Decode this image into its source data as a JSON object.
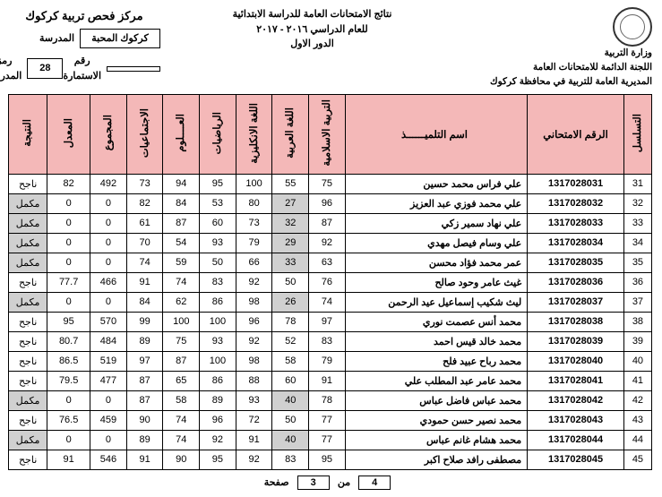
{
  "header": {
    "ministry": "وزارة التربية",
    "committee": "اللجنة الدائمة للامتحانات العامة",
    "directorate": "المديرية العامة للتربية في محافظة كركوك",
    "title": "نتائج الامتحانات العامة للدراسة الابتدائية",
    "year": "للعام الدراسي ٢٠١٦ - ٢٠١٧",
    "round": "الدور الاول",
    "center": "مركز فحص تربية كركوك",
    "school_label": "المدرسة",
    "school": "كركوك المحبة",
    "code_label": "رمز المدرسة",
    "code": "28",
    "form_label": "رقم الاستمارة"
  },
  "columns": {
    "seq": "التسلسل",
    "exnum": "الرقم الامتحاني",
    "name": "اسم التلميــــــذ",
    "s1": "التربية الاسلامية",
    "s2": "اللغة العربية",
    "s3": "اللغة الانكليزية",
    "s4": "الرياضيات",
    "s5": "العــــلوم",
    "s6": "الاجتماعيات",
    "total": "المجموع",
    "avg": "المعدل",
    "res": "النتيجة"
  },
  "rows": [
    {
      "seq": 31,
      "exnum": "1317028031",
      "name": "علي فراس محمد حسين",
      "s": [
        75,
        55,
        100,
        95,
        94,
        73
      ],
      "total": 492,
      "avg": "82",
      "res": "ناجح",
      "grey": []
    },
    {
      "seq": 32,
      "exnum": "1317028032",
      "name": "علي محمد فوزي عبد العزيز",
      "s": [
        96,
        27,
        80,
        53,
        84,
        82
      ],
      "total": 0,
      "avg": "0",
      "res": "مكمل",
      "grey": [
        "s2",
        "res"
      ]
    },
    {
      "seq": 33,
      "exnum": "1317028033",
      "name": "علي نهاد سمير زكي",
      "s": [
        87,
        32,
        73,
        60,
        87,
        61
      ],
      "total": 0,
      "avg": "0",
      "res": "مكمل",
      "grey": [
        "s2",
        "res"
      ]
    },
    {
      "seq": 34,
      "exnum": "1317028034",
      "name": "علي وسام فيصل مهدي",
      "s": [
        92,
        29,
        79,
        93,
        54,
        70
      ],
      "total": 0,
      "avg": "0",
      "res": "مكمل",
      "grey": [
        "s2",
        "res"
      ]
    },
    {
      "seq": 35,
      "exnum": "1317028035",
      "name": "عمر محمد فؤاد محسن",
      "s": [
        63,
        33,
        66,
        50,
        59,
        74
      ],
      "total": 0,
      "avg": "0",
      "res": "مكمل",
      "grey": [
        "s2",
        "res"
      ]
    },
    {
      "seq": 36,
      "exnum": "1317028036",
      "name": "غيث عامر وحود صالح",
      "s": [
        76,
        50,
        92,
        83,
        74,
        91
      ],
      "total": 466,
      "avg": "77.7",
      "res": "ناجح",
      "grey": []
    },
    {
      "seq": 37,
      "exnum": "1317028037",
      "name": "ليث شكيب إسماعيل عيد الرحمن",
      "s": [
        74,
        26,
        98,
        86,
        62,
        84
      ],
      "total": 0,
      "avg": "0",
      "res": "مكمل",
      "grey": [
        "s2",
        "res"
      ]
    },
    {
      "seq": 38,
      "exnum": "1317028038",
      "name": "محمد أنس عصمت نوري",
      "s": [
        97,
        78,
        96,
        100,
        100,
        99
      ],
      "total": 570,
      "avg": "95",
      "res": "ناجح",
      "grey": []
    },
    {
      "seq": 39,
      "exnum": "1317028039",
      "name": "محمد خالد قيس احمد",
      "s": [
        83,
        52,
        92,
        93,
        75,
        89
      ],
      "total": 484,
      "avg": "80.7",
      "res": "ناجح",
      "grey": []
    },
    {
      "seq": 40,
      "exnum": "1317028040",
      "name": "محمد رباح عبيد فلح",
      "s": [
        79,
        58,
        98,
        100,
        87,
        97
      ],
      "total": 519,
      "avg": "86.5",
      "res": "ناجح",
      "grey": []
    },
    {
      "seq": 41,
      "exnum": "1317028041",
      "name": "محمد عامر عبد المطلب علي",
      "s": [
        91,
        60,
        88,
        86,
        65,
        87
      ],
      "total": 477,
      "avg": "79.5",
      "res": "ناجح",
      "grey": []
    },
    {
      "seq": 42,
      "exnum": "1317028042",
      "name": "محمد عباس فاضل عباس",
      "s": [
        78,
        40,
        93,
        89,
        58,
        87
      ],
      "total": 0,
      "avg": "0",
      "res": "مكمل",
      "grey": [
        "s2",
        "res"
      ]
    },
    {
      "seq": 43,
      "exnum": "1317028043",
      "name": "محمد نصير حسن حمودي",
      "s": [
        77,
        50,
        72,
        96,
        74,
        90
      ],
      "total": 459,
      "avg": "76.5",
      "res": "ناجح",
      "grey": []
    },
    {
      "seq": 44,
      "exnum": "1317028044",
      "name": "محمد هشام غانم عباس",
      "s": [
        77,
        40,
        91,
        92,
        74,
        89
      ],
      "total": 0,
      "avg": "0",
      "res": "مكمل",
      "grey": [
        "s2",
        "res"
      ]
    },
    {
      "seq": 45,
      "exnum": "1317028045",
      "name": "مصطفى رافد صلاح اكبر",
      "s": [
        95,
        83,
        92,
        95,
        90,
        91
      ],
      "total": 546,
      "avg": "91",
      "res": "ناجح",
      "grey": []
    }
  ],
  "footer": {
    "label_a": "صفحة",
    "page": "3",
    "label_b": "من",
    "total": "4"
  }
}
